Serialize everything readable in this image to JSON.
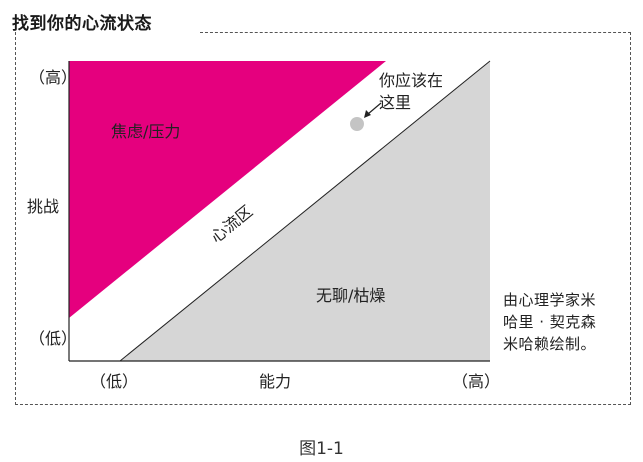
{
  "title": "找到你的心流状态",
  "axes": {
    "y_label": "挑战",
    "y_high": "（高）",
    "y_low": "（低）",
    "x_label": "能力",
    "x_low": "（低）",
    "x_high": "（高）"
  },
  "regions": {
    "anxiety": "焦虑/压力",
    "flow": "心流区",
    "boredom": "无聊/枯燥"
  },
  "marker": {
    "line1": "你应该在",
    "line2": "这里"
  },
  "note": {
    "line1": "由心理学家米",
    "line2": "哈里 · 契克森",
    "line3": "米哈赖绘制。"
  },
  "caption": "图1-1",
  "colors": {
    "anxiety": "#e5007e",
    "boredom": "#d6d6d6",
    "marker": "#c4c4c4"
  }
}
